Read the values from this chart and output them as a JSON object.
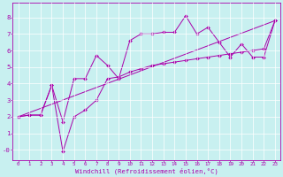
{
  "xlabel": "Windchill (Refroidissement éolien,°C)",
  "bg_color": "#c8f0f0",
  "line_color": "#aa00aa",
  "x_ticks": [
    0,
    1,
    2,
    3,
    4,
    5,
    6,
    7,
    8,
    9,
    10,
    11,
    12,
    13,
    14,
    15,
    16,
    17,
    18,
    19,
    20,
    21,
    22,
    23
  ],
  "y_ticks": [
    0,
    1,
    2,
    3,
    4,
    5,
    6,
    7,
    8
  ],
  "y_tick_labels": [
    "-0",
    "1",
    "2",
    "3",
    "4",
    "5",
    "6",
    "7",
    "8"
  ],
  "ylim": [
    -0.6,
    8.9
  ],
  "xlim": [
    -0.5,
    23.5
  ],
  "series1": {
    "x": [
      0,
      1,
      2,
      3,
      4,
      5,
      6,
      7,
      8,
      9,
      10,
      11,
      12,
      13,
      14,
      15,
      16,
      17,
      18,
      19,
      20,
      21,
      22,
      23
    ],
    "y": [
      2.0,
      2.1,
      2.1,
      3.9,
      1.7,
      4.3,
      4.3,
      5.7,
      5.1,
      4.3,
      6.6,
      7.0,
      7.0,
      7.1,
      7.1,
      8.1,
      7.0,
      7.4,
      6.5,
      5.6,
      6.4,
      5.6,
      5.6,
      7.8
    ]
  },
  "series2": {
    "x": [
      0,
      1,
      2,
      3,
      4,
      5,
      6,
      7,
      8,
      9,
      10,
      11,
      12,
      13,
      14,
      15,
      16,
      17,
      18,
      19,
      20,
      21,
      22,
      23
    ],
    "y": [
      2.0,
      2.1,
      2.1,
      3.9,
      -0.1,
      2.0,
      2.4,
      3.0,
      4.3,
      4.4,
      4.7,
      4.9,
      5.1,
      5.2,
      5.3,
      5.4,
      5.5,
      5.6,
      5.7,
      5.8,
      5.9,
      6.0,
      6.1,
      7.8
    ]
  },
  "series3": {
    "x": [
      0,
      23
    ],
    "y": [
      2.0,
      7.8
    ]
  },
  "marker": "D",
  "markersize": 2.0,
  "linewidth": 0.7,
  "tick_fontsize": 4.2,
  "xlabel_fontsize": 5.2,
  "grid_color": "#ffffff",
  "grid_linewidth": 0.5,
  "spine_linewidth": 0.6
}
